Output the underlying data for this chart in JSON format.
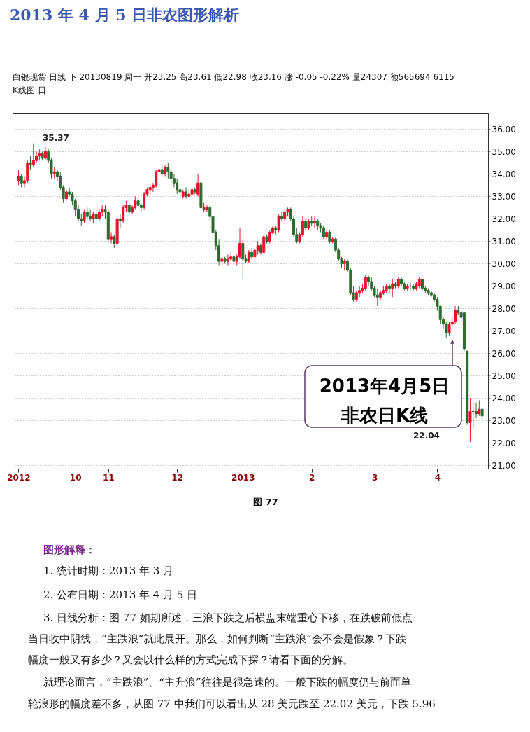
{
  "chart_data": {
    "type": "candlestick",
    "title": "2013 年 4 月 5 日非农图形解析",
    "categories": [
      "2012",
      null,
      null,
      null,
      null,
      null,
      null,
      null,
      null,
      null,
      null,
      null,
      null,
      null,
      null,
      null,
      null,
      null,
      null,
      "10",
      null,
      null,
      null,
      null,
      null,
      null,
      null,
      null,
      null,
      null,
      "11",
      null,
      null,
      null,
      null,
      null,
      null,
      null,
      null,
      null,
      null,
      null,
      null,
      null,
      null,
      null,
      null,
      null,
      null,
      null,
      null,
      null,
      null,
      "12",
      null,
      null,
      null,
      null,
      null,
      null,
      null,
      null,
      null,
      null,
      null,
      null,
      null,
      null,
      null,
      null,
      null,
      null,
      null,
      null,
      null,
      "2013",
      null,
      null,
      null,
      null,
      null,
      null,
      null,
      null,
      null,
      null,
      null,
      null,
      null,
      null,
      null,
      null,
      null,
      null,
      null,
      null,
      null,
      null,
      "2",
      null,
      null,
      null,
      null,
      null,
      null,
      null,
      null,
      null,
      null,
      null,
      null,
      null,
      null,
      null,
      null,
      null,
      null,
      null,
      null,
      "3",
      null,
      null,
      null,
      null,
      null,
      null,
      null,
      null,
      null,
      null,
      null,
      null,
      null,
      null,
      null,
      null,
      null,
      null,
      null,
      null,
      "4",
      null,
      null,
      null,
      null,
      null,
      null,
      null,
      null,
      null,
      null,
      null,
      null,
      null,
      null,
      null
    ],
    "ohlc": [
      [
        33.7,
        34.2,
        33.5,
        33.9
      ],
      [
        33.9,
        34.0,
        33.4,
        33.6
      ],
      [
        33.6,
        33.9,
        33.4,
        33.7
      ],
      [
        33.7,
        34.6,
        33.6,
        34.5
      ],
      [
        34.5,
        34.8,
        34.2,
        34.4
      ],
      [
        34.4,
        35.37,
        34.3,
        34.6
      ],
      [
        34.6,
        35.0,
        34.5,
        34.8
      ],
      [
        34.8,
        35.1,
        34.6,
        34.9
      ],
      [
        34.9,
        35.0,
        34.6,
        34.7
      ],
      [
        34.7,
        35.2,
        34.6,
        35.0
      ],
      [
        35.0,
        35.1,
        34.5,
        34.6
      ],
      [
        34.6,
        34.7,
        33.8,
        34.0
      ],
      [
        34.0,
        34.3,
        33.8,
        34.1
      ],
      [
        34.1,
        34.2,
        33.7,
        33.9
      ],
      [
        33.9,
        34.1,
        33.3,
        33.4
      ],
      [
        33.4,
        33.5,
        32.7,
        32.9
      ],
      [
        32.9,
        33.3,
        32.8,
        33.2
      ],
      [
        33.2,
        33.4,
        33.0,
        33.1
      ],
      [
        33.1,
        33.2,
        32.6,
        32.8
      ],
      [
        32.8,
        32.9,
        32.1,
        32.4
      ],
      [
        32.4,
        32.6,
        31.9,
        32.0
      ],
      [
        32.0,
        32.2,
        31.7,
        31.9
      ],
      [
        31.9,
        32.4,
        31.8,
        32.3
      ],
      [
        32.3,
        32.5,
        32.0,
        32.1
      ],
      [
        32.1,
        32.4,
        31.9,
        32.0
      ],
      [
        32.0,
        32.3,
        31.8,
        32.2
      ],
      [
        32.2,
        32.3,
        31.9,
        32.0
      ],
      [
        32.0,
        32.4,
        31.9,
        32.3
      ],
      [
        32.3,
        32.6,
        32.1,
        32.4
      ],
      [
        32.4,
        32.6,
        32.0,
        32.3
      ],
      [
        32.3,
        32.4,
        30.9,
        31.1
      ],
      [
        31.1,
        31.4,
        30.9,
        31.2
      ],
      [
        31.2,
        31.3,
        30.7,
        30.9
      ],
      [
        30.9,
        32.1,
        30.8,
        32.0
      ],
      [
        32.0,
        32.2,
        31.6,
        31.9
      ],
      [
        31.9,
        32.6,
        31.8,
        32.5
      ],
      [
        32.5,
        32.8,
        32.3,
        32.6
      ],
      [
        32.6,
        32.7,
        32.2,
        32.3
      ],
      [
        32.3,
        32.6,
        32.2,
        32.5
      ],
      [
        32.5,
        33.0,
        32.4,
        32.8
      ],
      [
        32.8,
        32.9,
        32.3,
        32.6
      ],
      [
        32.6,
        32.7,
        32.3,
        32.5
      ],
      [
        32.5,
        33.2,
        32.4,
        33.1
      ],
      [
        33.1,
        33.4,
        33.0,
        33.3
      ],
      [
        33.3,
        33.5,
        33.1,
        33.4
      ],
      [
        33.4,
        33.6,
        33.2,
        33.5
      ],
      [
        33.5,
        34.2,
        33.4,
        34.1
      ],
      [
        34.1,
        34.3,
        33.9,
        34.2
      ],
      [
        34.2,
        34.4,
        33.9,
        34.0
      ],
      [
        34.0,
        34.4,
        33.9,
        34.3
      ],
      [
        34.3,
        34.5,
        33.8,
        34.1
      ],
      [
        34.1,
        34.2,
        33.6,
        33.8
      ],
      [
        33.8,
        34.0,
        33.4,
        33.6
      ],
      [
        33.6,
        33.8,
        33.1,
        33.3
      ],
      [
        33.3,
        33.5,
        33.0,
        33.2
      ],
      [
        33.0,
        33.3,
        32.9,
        33.2
      ],
      [
        33.2,
        33.4,
        32.9,
        33.0
      ],
      [
        33.0,
        33.3,
        32.9,
        33.1
      ],
      [
        33.1,
        33.4,
        33.0,
        33.3
      ],
      [
        33.3,
        33.4,
        33.1,
        33.2
      ],
      [
        33.1,
        34.0,
        33.0,
        33.6
      ],
      [
        33.6,
        33.7,
        32.4,
        32.5
      ],
      [
        32.5,
        32.7,
        32.3,
        32.4
      ],
      [
        32.4,
        32.6,
        32.3,
        32.5
      ],
      [
        32.5,
        32.6,
        31.9,
        32.1
      ],
      [
        32.1,
        32.2,
        31.2,
        31.4
      ],
      [
        31.4,
        31.5,
        30.6,
        30.8
      ],
      [
        30.8,
        31.1,
        29.9,
        30.1
      ],
      [
        30.1,
        30.3,
        29.9,
        30.2
      ],
      [
        30.2,
        30.3,
        30.0,
        30.1
      ],
      [
        30.1,
        30.4,
        29.9,
        30.2
      ],
      [
        30.2,
        30.5,
        30.1,
        30.3
      ],
      [
        30.3,
        30.4,
        30.0,
        30.1
      ],
      [
        30.1,
        30.4,
        29.9,
        30.3
      ],
      [
        30.3,
        31.6,
        30.2,
        30.9
      ],
      [
        30.9,
        31.1,
        29.3,
        30.2
      ],
      [
        30.2,
        30.4,
        30.0,
        30.1
      ],
      [
        30.1,
        30.6,
        30.0,
        30.5
      ],
      [
        30.5,
        30.7,
        30.2,
        30.3
      ],
      [
        30.3,
        30.7,
        30.2,
        30.6
      ],
      [
        30.6,
        31.0,
        30.4,
        30.8
      ],
      [
        30.8,
        30.9,
        30.4,
        30.5
      ],
      [
        30.5,
        31.3,
        30.4,
        31.2
      ],
      [
        31.2,
        31.3,
        30.9,
        31.0
      ],
      [
        31.0,
        31.5,
        30.9,
        31.4
      ],
      [
        31.4,
        31.7,
        31.3,
        31.6
      ],
      [
        31.6,
        31.7,
        31.3,
        31.5
      ],
      [
        31.5,
        32.2,
        31.4,
        32.1
      ],
      [
        32.1,
        32.3,
        31.9,
        32.0
      ],
      [
        32.0,
        32.4,
        31.9,
        32.3
      ],
      [
        32.3,
        32.5,
        32.1,
        32.4
      ],
      [
        32.4,
        32.5,
        31.9,
        32.0
      ],
      [
        32.0,
        32.1,
        31.2,
        31.3
      ],
      [
        31.3,
        31.6,
        30.9,
        31.0
      ],
      [
        31.0,
        31.4,
        30.9,
        31.3
      ],
      [
        31.3,
        32.1,
        31.2,
        31.9
      ],
      [
        31.9,
        32.0,
        31.5,
        31.6
      ],
      [
        31.6,
        32.0,
        31.5,
        31.9
      ],
      [
        31.9,
        32.1,
        31.7,
        31.8
      ],
      [
        31.8,
        32.1,
        31.6,
        31.9
      ],
      [
        31.9,
        32.0,
        31.5,
        31.7
      ],
      [
        31.7,
        31.8,
        31.4,
        31.6
      ],
      [
        31.6,
        31.7,
        31.1,
        31.2
      ],
      [
        31.2,
        31.5,
        31.1,
        31.4
      ],
      [
        31.4,
        31.5,
        30.9,
        31.0
      ],
      [
        31.0,
        31.2,
        30.9,
        31.1
      ],
      [
        31.1,
        31.2,
        30.5,
        30.6
      ],
      [
        30.6,
        30.7,
        30.1,
        30.2
      ],
      [
        30.2,
        30.3,
        29.8,
        30.0
      ],
      [
        30.0,
        30.2,
        29.7,
        30.1
      ],
      [
        30.1,
        30.2,
        29.6,
        29.7
      ],
      [
        29.7,
        29.8,
        28.6,
        28.7
      ],
      [
        28.7,
        29.0,
        28.3,
        28.4
      ],
      [
        28.4,
        28.8,
        28.3,
        28.7
      ],
      [
        28.7,
        29.0,
        28.5,
        28.8
      ],
      [
        28.8,
        29.1,
        28.7,
        28.9
      ],
      [
        28.9,
        29.5,
        28.8,
        29.4
      ],
      [
        29.4,
        29.5,
        29.0,
        29.2
      ],
      [
        29.2,
        29.4,
        28.8,
        28.9
      ],
      [
        28.9,
        29.0,
        28.5,
        28.6
      ],
      [
        28.6,
        28.9,
        28.1,
        28.5
      ],
      [
        28.5,
        28.8,
        28.4,
        28.7
      ],
      [
        28.7,
        29.0,
        28.6,
        28.8
      ],
      [
        28.8,
        29.1,
        28.7,
        29.0
      ],
      [
        29.0,
        29.1,
        28.7,
        28.9
      ],
      [
        28.9,
        29.3,
        28.5,
        29.1
      ],
      [
        29.1,
        29.2,
        28.9,
        29.0
      ],
      [
        29.0,
        29.4,
        28.9,
        29.3
      ],
      [
        29.3,
        29.4,
        29.0,
        29.1
      ],
      [
        29.1,
        29.2,
        28.8,
        28.9
      ],
      [
        28.9,
        29.1,
        28.8,
        29.0
      ],
      [
        29.0,
        29.2,
        28.8,
        29.0
      ],
      [
        29.0,
        29.1,
        28.8,
        28.9
      ],
      [
        28.9,
        29.2,
        28.8,
        29.1
      ],
      [
        29.0,
        29.4,
        28.9,
        29.3
      ],
      [
        29.3,
        29.3,
        28.8,
        28.9
      ],
      [
        28.9,
        29.0,
        28.7,
        28.8
      ],
      [
        28.8,
        28.9,
        28.6,
        28.7
      ],
      [
        28.7,
        28.8,
        28.5,
        28.6
      ],
      [
        28.6,
        28.7,
        28.3,
        28.4
      ],
      [
        28.4,
        28.5,
        27.9,
        28.1
      ],
      [
        28.1,
        28.1,
        27.3,
        27.5
      ],
      [
        27.5,
        27.6,
        27.1,
        27.3
      ],
      [
        27.3,
        27.4,
        26.7,
        26.9
      ],
      [
        26.9,
        27.4,
        26.8,
        27.3
      ],
      [
        27.3,
        27.6,
        27.2,
        27.4
      ],
      [
        27.4,
        28.1,
        27.3,
        27.9
      ],
      [
        27.9,
        28.1,
        27.7,
        27.8
      ],
      [
        27.8,
        27.9,
        27.5,
        27.6
      ],
      [
        27.8,
        27.8,
        26.1,
        26.2
      ],
      [
        26.1,
        26.1,
        22.8,
        22.9
      ],
      [
        22.9,
        24.0,
        22.04,
        23.4
      ],
      [
        23.4,
        23.8,
        22.6,
        23.4
      ],
      [
        23.4,
        23.8,
        23.1,
        23.3
      ],
      [
        23.3,
        23.9,
        23.2,
        23.5
      ],
      [
        23.5,
        23.6,
        22.8,
        23.2
      ]
    ],
    "ylim": [
      20.85,
      36.7
    ],
    "yticks": [
      {
        "value": 21,
        "label": "21.00"
      },
      {
        "value": 22,
        "label": "22.00"
      },
      {
        "value": 23,
        "label": "23.00"
      },
      {
        "value": 24,
        "label": "24.00"
      },
      {
        "value": 25,
        "label": "25.00"
      },
      {
        "value": 26,
        "label": "26.00"
      },
      {
        "value": 27,
        "label": "27.00"
      },
      {
        "value": 28,
        "label": "28.00"
      },
      {
        "value": 29,
        "label": "29.00"
      },
      {
        "value": 30,
        "label": "30.00"
      },
      {
        "value": 31,
        "label": "31.00"
      },
      {
        "value": 32,
        "label": "32.00"
      },
      {
        "value": 33,
        "label": "33.00"
      },
      {
        "value": 34,
        "label": "34.00"
      },
      {
        "value": 35,
        "label": "35.00"
      },
      {
        "value": 36,
        "label": "36.00"
      }
    ],
    "grid": "y",
    "annotations": [
      "白银现货 日线 下 20130819 周一 开23.25 高23.61 低22.98 收23.16 涨 -0.05 -0.22% 量24307 额565694 6115",
      "K线图 日",
      "35.37",
      "22.04",
      "2013年4月5日",
      "非农日K线",
      "图 77",
      "图形解释：",
      "1. 统计时期：2013 年 3 月",
      "2. 公布日期：2013 年 4 月 5 日",
      "3. 日线分析：图 77 如期所述，三浪下跌之后横盘末端重心下移，在跌破前低点",
      "当日收中阴线，“主跌浪”就此展开。那么，如何判断“主跌浪”会不会是假象？下跌",
      "幅度一般又有多少？又会以什么样的方式完成下探？请看下面的分解。",
      "就理论而言，“主跌浪”、“主升浪”往往是很急速的。一般下跌的幅度仍与前面单",
      "轮浪形的幅度差不多，从图 77 中我们可以看出从 28 美元跌至 22.02 美元，下跌 5.96"
    ]
  }
}
